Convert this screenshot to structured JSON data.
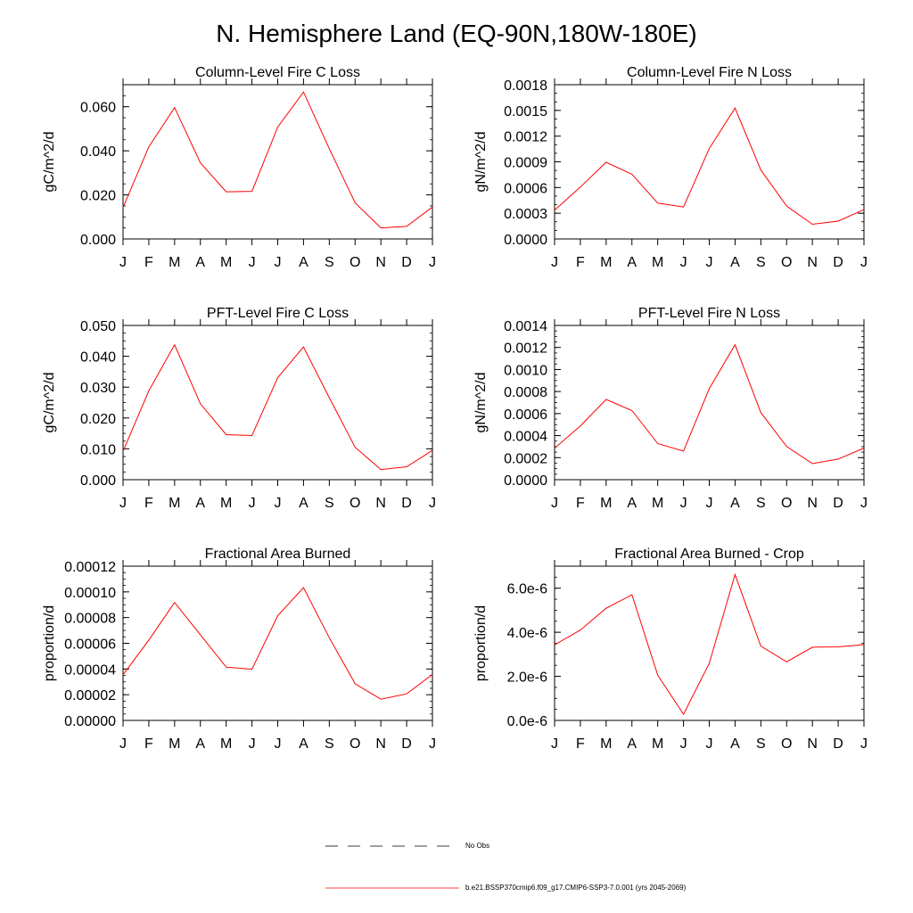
{
  "title": "N. Hemisphere Land (EQ-90N,180W-180E)",
  "months": [
    "J",
    "F",
    "M",
    "A",
    "M",
    "J",
    "J",
    "A",
    "S",
    "O",
    "N",
    "D",
    "J"
  ],
  "line_color": "#ff0000",
  "chart_data": [
    {
      "type": "line",
      "title": "Column-Level Fire C Loss",
      "ylabel": "gC/m^2/d",
      "xlabel": "",
      "ylim": [
        0,
        0.07
      ],
      "yticks": [
        0,
        0.02,
        0.04,
        0.06
      ],
      "yticklabels": [
        "0.000",
        "0.020",
        "0.040",
        "0.060"
      ],
      "ytick_minor": 0.005,
      "categories": [
        "J",
        "F",
        "M",
        "A",
        "M",
        "J",
        "J",
        "A",
        "S",
        "O",
        "N",
        "D",
        "J"
      ],
      "values": [
        0.0143,
        0.0418,
        0.0596,
        0.0345,
        0.0214,
        0.0216,
        0.0508,
        0.0667,
        0.041,
        0.0164,
        0.005,
        0.0057,
        0.0145
      ]
    },
    {
      "type": "line",
      "title": "Column-Level Fire N Loss",
      "ylabel": "gN/m^2/d",
      "xlabel": "",
      "ylim": [
        0,
        0.0018
      ],
      "yticks": [
        0,
        0.0003,
        0.0006,
        0.0009,
        0.0012,
        0.0015,
        0.0018
      ],
      "yticklabels": [
        "0.0000",
        "0.0003",
        "0.0006",
        "0.0009",
        "0.0012",
        "0.0015",
        "0.0018"
      ],
      "ytick_minor": 0.0001,
      "categories": [
        "J",
        "F",
        "M",
        "A",
        "M",
        "J",
        "J",
        "A",
        "S",
        "O",
        "N",
        "D",
        "J"
      ],
      "values": [
        0.000335,
        0.000606,
        0.000895,
        0.000755,
        0.000418,
        0.000372,
        0.001055,
        0.001527,
        0.000805,
        0.000383,
        0.000172,
        0.000208,
        0.000342
      ]
    },
    {
      "type": "line",
      "title": "PFT-Level Fire C Loss",
      "ylabel": "gC/m^2/d",
      "xlabel": "",
      "ylim": [
        0,
        0.05
      ],
      "yticks": [
        0,
        0.01,
        0.02,
        0.03,
        0.04,
        0.05
      ],
      "yticklabels": [
        "0.000",
        "0.010",
        "0.020",
        "0.030",
        "0.040",
        "0.050"
      ],
      "ytick_minor": 0.0025,
      "categories": [
        "J",
        "F",
        "M",
        "A",
        "M",
        "J",
        "J",
        "A",
        "S",
        "O",
        "N",
        "D",
        "J"
      ],
      "values": [
        0.0092,
        0.0288,
        0.0437,
        0.0246,
        0.0146,
        0.0143,
        0.0331,
        0.043,
        0.0266,
        0.0105,
        0.0033,
        0.0042,
        0.0095
      ]
    },
    {
      "type": "line",
      "title": "PFT-Level Fire N Loss",
      "ylabel": "gN/m^2/d",
      "xlabel": "",
      "ylim": [
        0,
        0.0014
      ],
      "yticks": [
        0,
        0.0002,
        0.0004,
        0.0006,
        0.0008,
        0.001,
        0.0012,
        0.0014
      ],
      "yticklabels": [
        "0.0000",
        "0.0002",
        "0.0004",
        "0.0006",
        "0.0008",
        "0.0010",
        "0.0012",
        "0.0014"
      ],
      "ytick_minor": 5e-05,
      "categories": [
        "J",
        "F",
        "M",
        "A",
        "M",
        "J",
        "J",
        "A",
        "S",
        "O",
        "N",
        "D",
        "J"
      ],
      "values": [
        0.000285,
        0.000488,
        0.000728,
        0.000627,
        0.000328,
        0.00026,
        0.000826,
        0.001224,
        0.000609,
        0.000301,
        0.000146,
        0.000187,
        0.000287
      ]
    },
    {
      "type": "line",
      "title": "Fractional Area Burned",
      "ylabel": "proportion/d",
      "xlabel": "",
      "ylim": [
        0,
        0.00012
      ],
      "yticks": [
        0,
        2e-05,
        4e-05,
        6e-05,
        8e-05,
        0.0001,
        0.00012
      ],
      "yticklabels": [
        "0.00000",
        "0.00002",
        "0.00004",
        "0.00006",
        "0.00008",
        "0.00010",
        "0.00012"
      ],
      "ytick_minor": 5e-06,
      "categories": [
        "J",
        "F",
        "M",
        "A",
        "M",
        "J",
        "J",
        "A",
        "S",
        "O",
        "N",
        "D",
        "J"
      ],
      "values": [
        3.55e-05,
        6.25e-05,
        9.18e-05,
        6.65e-05,
        4.15e-05,
        3.98e-05,
        8.15e-05,
        0.0001033,
        6.44e-05,
        2.85e-05,
        1.65e-05,
        2.07e-05,
        3.58e-05
      ]
    },
    {
      "type": "line",
      "title": "Fractional Area Burned - Crop",
      "ylabel": "proportion/d",
      "xlabel": "",
      "ylim": [
        0,
        7e-06
      ],
      "yticks": [
        0,
        2e-06,
        4e-06,
        6e-06
      ],
      "yticklabels": [
        "0.0e-6",
        "2.0e-6",
        "4.0e-6",
        "6.0e-6"
      ],
      "ytick_minor": 5e-07,
      "categories": [
        "J",
        "F",
        "M",
        "A",
        "M",
        "J",
        "J",
        "A",
        "S",
        "O",
        "N",
        "D",
        "J"
      ],
      "values": [
        3.43e-06,
        4.1e-06,
        5.09e-06,
        5.7e-06,
        2.05e-06,
        2.8e-07,
        2.59e-06,
        6.62e-06,
        3.37e-06,
        2.66e-06,
        3.32e-06,
        3.34e-06,
        3.44e-06
      ]
    }
  ],
  "legend": [
    {
      "label": "No Obs",
      "style": "dashed",
      "color": "#000000"
    },
    {
      "label": "b.e21.BSSP370cmip6.f09_g17.CMIP6-SSP3-7.0.001 (yrs 2045-2069)",
      "style": "solid",
      "color": "#ff0000"
    }
  ]
}
